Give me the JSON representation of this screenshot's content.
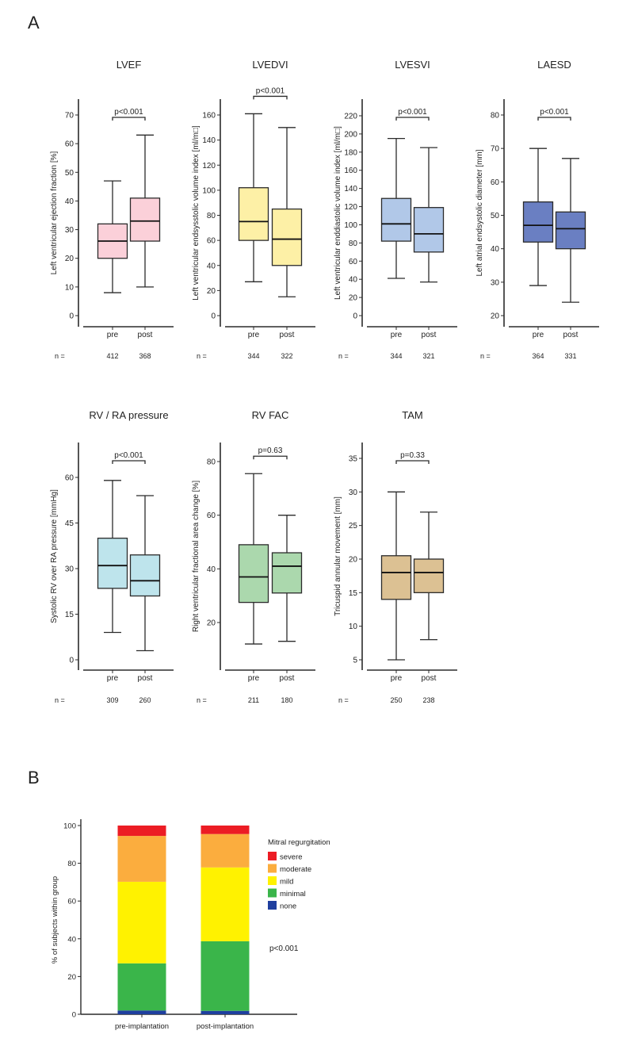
{
  "figure": {
    "panel_a_letter": "A",
    "panel_b_letter": "B"
  },
  "chart_data": [
    {
      "type": "box",
      "title": "LVEF",
      "ylabel": "Left ventricular ejection fraction [%]",
      "categories": [
        "pre",
        "post"
      ],
      "ticks": [
        0,
        10,
        20,
        30,
        40,
        50,
        60,
        70
      ],
      "ylim": [
        0,
        70
      ],
      "p_value": "p<0.001",
      "n_label": "n =",
      "n": [
        "412",
        "368"
      ],
      "color": "#fbd0d9",
      "boxes": [
        {
          "min": 8,
          "q1": 20,
          "median": 26,
          "q3": 32,
          "max": 47
        },
        {
          "min": 10,
          "q1": 26,
          "median": 33,
          "q3": 41,
          "max": 63
        }
      ]
    },
    {
      "type": "box",
      "title": "LVEDVI",
      "ylabel": "Left ventricular endsysstolic volume index [ml/m□]",
      "categories": [
        "pre",
        "post"
      ],
      "ticks": [
        0,
        20,
        40,
        60,
        80,
        100,
        120,
        140,
        160
      ],
      "ylim": [
        0,
        160
      ],
      "p_value": "p<0.001",
      "n_label": "n =",
      "n": [
        "344",
        "322"
      ],
      "color": "#fdf0a6",
      "boxes": [
        {
          "min": 27,
          "q1": 60,
          "median": 75,
          "q3": 102,
          "max": 161
        },
        {
          "min": 15,
          "q1": 40,
          "median": 61,
          "q3": 85,
          "max": 150
        }
      ]
    },
    {
      "type": "box",
      "title": "LVESVI",
      "ylabel": "Left ventricular enddiastolic volume index [ml/m□]",
      "categories": [
        "pre",
        "post"
      ],
      "ticks": [
        0,
        20,
        40,
        60,
        80,
        100,
        120,
        140,
        160,
        180,
        200,
        220
      ],
      "ylim": [
        0,
        220
      ],
      "p_value": "p<0.001",
      "n_label": "n =",
      "n": [
        "344",
        "321"
      ],
      "color": "#b1c8e8",
      "boxes": [
        {
          "min": 41,
          "q1": 82,
          "median": 101,
          "q3": 129,
          "max": 195
        },
        {
          "min": 37,
          "q1": 70,
          "median": 90,
          "q3": 119,
          "max": 185
        }
      ]
    },
    {
      "type": "box",
      "title": "LAESD",
      "ylabel": "Left atrial endsystolic diameter [mm]",
      "categories": [
        "pre",
        "post"
      ],
      "ticks": [
        20,
        30,
        40,
        50,
        60,
        70,
        80
      ],
      "ylim": [
        20,
        80
      ],
      "p_value": "p<0.001",
      "n_label": "n =",
      "n": [
        "364",
        "331"
      ],
      "color": "#6a7fc2",
      "boxes": [
        {
          "min": 29,
          "q1": 42,
          "median": 47,
          "q3": 54,
          "max": 70
        },
        {
          "min": 24,
          "q1": 40,
          "median": 46,
          "q3": 51,
          "max": 67
        }
      ]
    },
    {
      "type": "box",
      "title": "RV / RA pressure",
      "ylabel": "Systolic RV over RA pressure [mmHg]",
      "categories": [
        "pre",
        "post"
      ],
      "ticks": [
        0,
        15,
        30,
        45,
        60
      ],
      "ylim": [
        0,
        60
      ],
      "p_value": "p<0.001",
      "n_label": "n =",
      "n": [
        "309",
        "260"
      ],
      "color": "#bee4ec",
      "boxes": [
        {
          "min": 9,
          "q1": 23.5,
          "median": 31,
          "q3": 40,
          "max": 59
        },
        {
          "min": 3,
          "q1": 21,
          "median": 26,
          "q3": 34.5,
          "max": 54
        }
      ]
    },
    {
      "type": "box",
      "title": "RV FAC",
      "ylabel": "Right ventricular fractional area change [%]",
      "categories": [
        "pre",
        "post"
      ],
      "ticks": [
        20,
        40,
        60,
        80
      ],
      "ylim": [
        20,
        80
      ],
      "p_value": "p=0.63",
      "n_label": "n =",
      "n": [
        "211",
        "180"
      ],
      "color": "#abd8ad",
      "boxes": [
        {
          "min": 12,
          "q1": 27.5,
          "median": 37,
          "q3": 49,
          "max": 75.5
        },
        {
          "min": 13,
          "q1": 31,
          "median": 41,
          "q3": 46,
          "max": 60
        }
      ]
    },
    {
      "type": "box",
      "title": "TAM",
      "ylabel": "Tricuspid annular movement [mm]",
      "categories": [
        "pre",
        "post"
      ],
      "ticks": [
        5,
        10,
        15,
        20,
        25,
        30,
        35
      ],
      "ylim": [
        5,
        35
      ],
      "p_value": "p=0.33",
      "n_label": "n =",
      "n": [
        "250",
        "238"
      ],
      "color": "#dcc193",
      "boxes": [
        {
          "min": 5,
          "q1": 14,
          "median": 18,
          "q3": 20.5,
          "max": 30
        },
        {
          "min": 8,
          "q1": 15,
          "median": 18,
          "q3": 20,
          "max": 27
        }
      ]
    },
    {
      "type": "bar",
      "stacked": true,
      "title": "",
      "ylabel": "% of subjects within group",
      "xlabel": "",
      "categories": [
        "pre-implantation",
        "post-implantation"
      ],
      "ticks": [
        0,
        20,
        40,
        60,
        80,
        100
      ],
      "ylim": [
        0,
        100
      ],
      "legend_title": "Mitral regurgitation",
      "legend_position": "right",
      "annotation": "p<0.001",
      "series": [
        {
          "name": "none",
          "color": "#1f3f9e",
          "values": [
            2,
            1.8
          ]
        },
        {
          "name": "minimal",
          "color": "#3ab54a",
          "values": [
            25,
            36.9
          ]
        },
        {
          "name": "mild",
          "color": "#fff200",
          "values": [
            43.2,
            39.1
          ]
        },
        {
          "name": "moderate",
          "color": "#fbad3e",
          "values": [
            24.3,
            17.7
          ]
        },
        {
          "name": "severe",
          "color": "#ec1c24",
          "values": [
            5.5,
            4.5
          ]
        }
      ],
      "legend_order": [
        "severe",
        "moderate",
        "mild",
        "minimal",
        "none"
      ]
    }
  ]
}
